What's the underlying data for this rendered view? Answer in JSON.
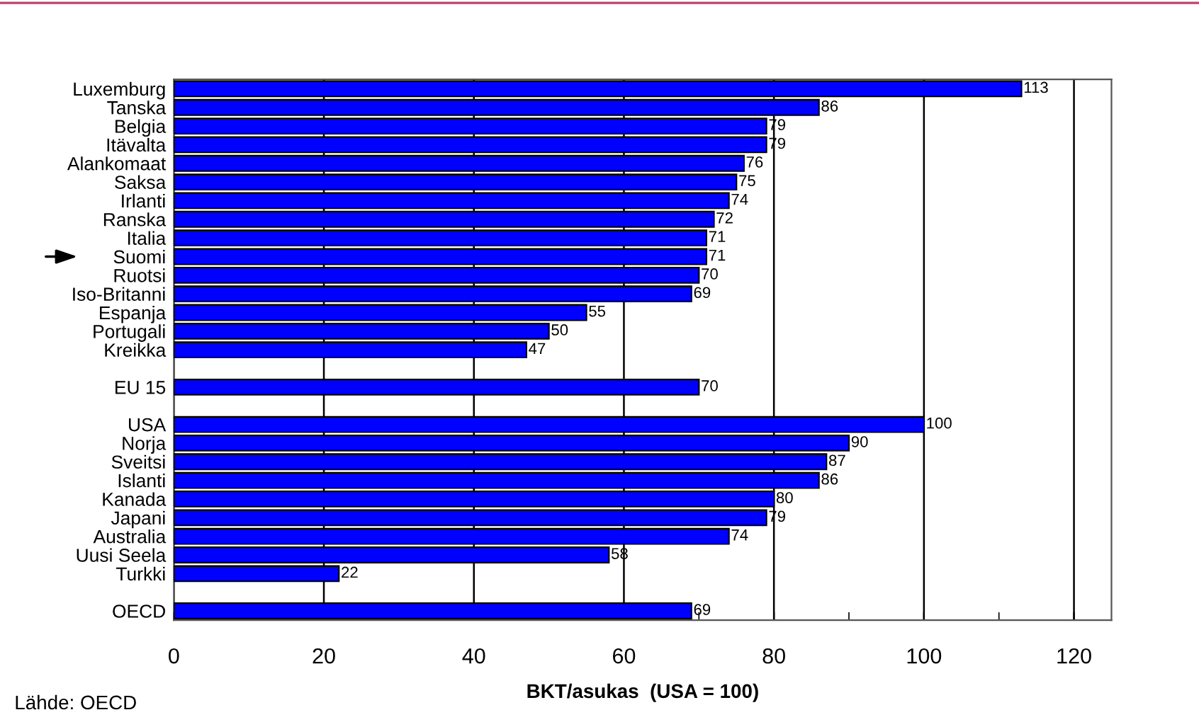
{
  "chart_data": {
    "type": "bar",
    "orientation": "horizontal",
    "xlabel": "BKT/asukas  (USA = 100)",
    "annotations": [
      "Lähde: OECD"
    ],
    "categories": [
      "Luxemburg",
      "Tanska",
      "Belgia",
      "Itävalta",
      "Alankomaat",
      "Saksa",
      "Irlanti",
      "Ranska",
      "Italia",
      "Suomi",
      "Ruotsi",
      "Iso-Britanni",
      "Espanja",
      "Portugali",
      "Kreikka",
      null,
      "EU 15",
      null,
      "USA",
      "Norja",
      "Sveitsi",
      "Islanti",
      "Kanada",
      "Japani",
      "Australia",
      "Uusi Seela",
      "Turkki",
      null,
      "OECD"
    ],
    "values": [
      113,
      86,
      79,
      79,
      76,
      75,
      74,
      72,
      71,
      71,
      70,
      69,
      55,
      50,
      47,
      null,
      70,
      null,
      100,
      90,
      87,
      86,
      80,
      79,
      74,
      58,
      22,
      null,
      69
    ],
    "color": "#0000ff",
    "xlim": [
      0,
      125
    ],
    "xticks": [
      0,
      {
        "value": 10,
        "label": null
      },
      20,
      {
        "value": 30,
        "label": null
      },
      40,
      {
        "value": 50,
        "label": null
      },
      60,
      {
        "value": 70,
        "label": null
      },
      80,
      {
        "value": 90,
        "label": null
      },
      100,
      {
        "value": 110,
        "label": null
      },
      120
    ],
    "grid": "x",
    "data_labels": true,
    "legend": false
  }
}
